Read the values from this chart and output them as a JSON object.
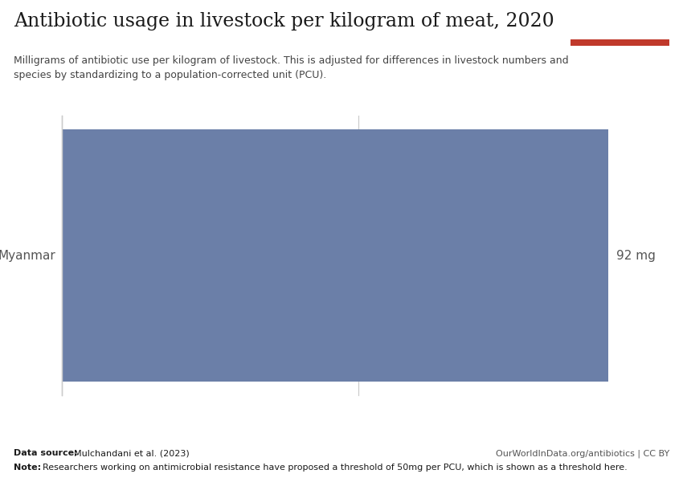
{
  "title": "Antibiotic usage in livestock per kilogram of meat, 2020",
  "subtitle_line1": "Milligrams of antibiotic use per kilogram of livestock. This is adjusted for differences in livestock numbers and",
  "subtitle_line2": "species by standardizing to a population-corrected unit (PCU).",
  "country": "Myanmar",
  "value": 92,
  "value_label": "92 mg",
  "bar_color": "#6b7fa8",
  "bg_color": "#ffffff",
  "title_color": "#1a1a1a",
  "subtitle_color": "#444444",
  "label_color": "#555555",
  "datasource_bold": "Data source:",
  "datasource_text": " Mulchandani et al. (2023)",
  "datasource_right": "OurWorldInData.org/antibiotics | CC BY",
  "note_bold": "Note:",
  "note_text": " Researchers working on antimicrobial resistance have proposed a threshold of 50mg per PCU, which is shown as a threshold here.",
  "owid_box_color": "#1a2e4a",
  "owid_red_color": "#c0392b",
  "threshold_value": 50,
  "xlim_max": 92,
  "spine_color": "#cccccc",
  "threshold_line_color": "#cccccc"
}
